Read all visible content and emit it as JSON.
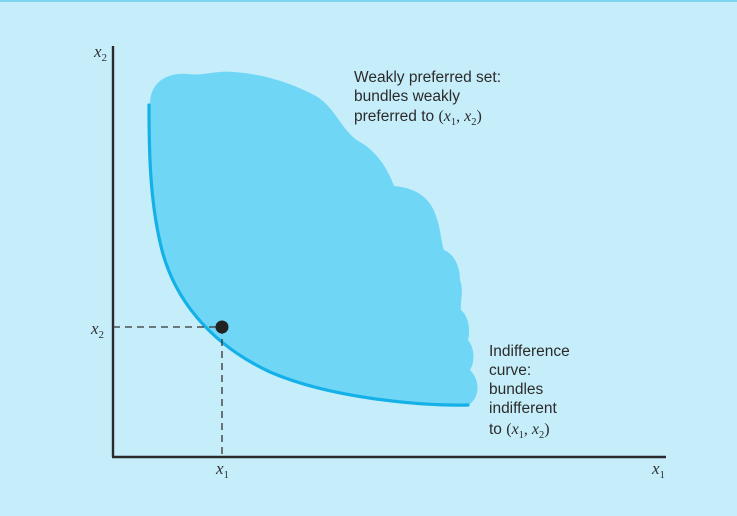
{
  "colors": {
    "background": "#c6eefa",
    "preferred_set_fill": "#6fd6f6",
    "curve": "#13b1e8",
    "axes": "#2a2a2a",
    "point": "#222222"
  },
  "axes": {
    "y_label_base": "x",
    "y_label_sub": "2",
    "x_label_base": "x",
    "x_label_sub": "1",
    "x_tick_base": "x",
    "x_tick_sub": "1",
    "y_tick_base": "x",
    "y_tick_sub": "2"
  },
  "annotations": {
    "preferred_set": {
      "line1": "Weakly preferred set:",
      "line2": "bundles weakly",
      "line3_prefix": "preferred to ",
      "bundle": {
        "open": "(",
        "a_base": "x",
        "a_sub": "1",
        "sep": ", ",
        "b_base": "x",
        "b_sub": "2",
        "close": ")"
      }
    },
    "indifference_curve": {
      "line1": "Indifference",
      "line2": "curve:",
      "line3": "bundles",
      "line4": "indifferent",
      "line5_prefix": "to ",
      "bundle": {
        "open": "(",
        "a_base": "x",
        "a_sub": "1",
        "sep": ", ",
        "b_base": "x",
        "b_sub": "2",
        "close": ")"
      }
    }
  },
  "point_marker": "bundle-point"
}
